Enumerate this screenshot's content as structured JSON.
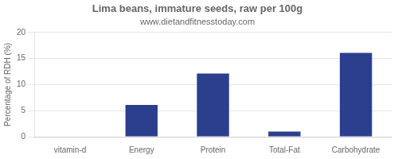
{
  "chart_data": {
    "type": "bar",
    "title": "Lima beans, immature seeds, raw per 100g",
    "subtitle": "www.dietandfitnesstoday.com",
    "categories": [
      "vitamin-d",
      "Energy",
      "Protein",
      "Total-Fat",
      "Carbohydrate"
    ],
    "values": [
      0,
      6.1,
      12.1,
      1.0,
      16.1
    ],
    "color": "#2b3f8c",
    "ylim": [
      0,
      20
    ],
    "yticks": [
      0,
      5,
      10,
      15,
      20
    ],
    "ylabel": "Percentage of RDH (%)",
    "grid": true
  }
}
